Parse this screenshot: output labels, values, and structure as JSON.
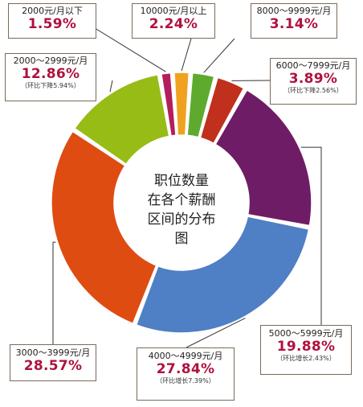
{
  "chart_data": {
    "type": "pie",
    "title_lines": [
      "职位数量",
      "在各个薪酬",
      "区间的分布图"
    ],
    "slices": [
      {
        "range": "10000元/月以上",
        "percent_text": "2.24%",
        "value": 2.24,
        "color": "#f0a21e",
        "note": ""
      },
      {
        "range": "8000～9999元/月",
        "percent_text": "3.14%",
        "value": 3.14,
        "color": "#5eaa2e",
        "note": ""
      },
      {
        "range": "6000～7999元/月",
        "percent_text": "3.89%",
        "value": 3.89,
        "color": "#c0301d",
        "note": "（环比下降2.56%）"
      },
      {
        "range": "5000～5999元/月",
        "percent_text": "19.88%",
        "value": 19.88,
        "color": "#6e1c66",
        "note": "（环比增长2.43%）"
      },
      {
        "range": "4000～4999元/月",
        "percent_text": "27.84%",
        "value": 27.84,
        "color": "#4f7fc4",
        "note": "（环比增长7.39%）"
      },
      {
        "range": "3000～3999元/月",
        "percent_text": "28.57%",
        "value": 28.57,
        "color": "#de4c12",
        "note": ""
      },
      {
        "range": "2000～2999元/月",
        "percent_text": "12.86%",
        "value": 12.86,
        "color": "#98bc16",
        "note": "（环比下降5.94%）"
      },
      {
        "range": "2000元/月以下",
        "percent_text": "1.59%",
        "value": 1.59,
        "color": "#b21f5a",
        "note": ""
      }
    ]
  }
}
